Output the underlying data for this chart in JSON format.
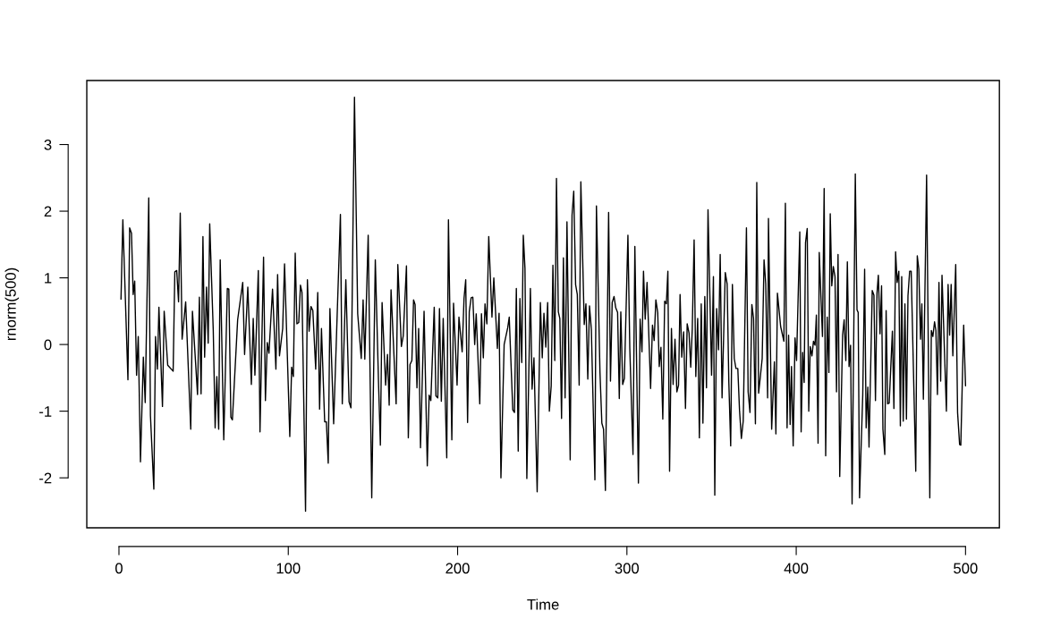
{
  "chart_data": {
    "type": "line",
    "xlabel": "Time",
    "ylabel": "rnorm(500)",
    "color": "#000000",
    "xlim": [
      -19,
      520
    ],
    "ylim": [
      -2.75,
      3.96
    ],
    "xticks": [
      0,
      100,
      200,
      300,
      400,
      500
    ],
    "yticks": [
      -2,
      -1,
      0,
      1,
      2,
      3
    ],
    "x": [
      1.2,
      2.3,
      5.3,
      6.3,
      7.4,
      8.4,
      9.3,
      10.4,
      11.4,
      12.7,
      14.4,
      15.5,
      17.6,
      18.6,
      20.6,
      21.6,
      22.7,
      23.6,
      25.7,
      26.7,
      28.8,
      32,
      33,
      34.1,
      35.2,
      36.2,
      37.3,
      39.4,
      42.4,
      43.4,
      46.4,
      47.5,
      48.5,
      49.6,
      50.6,
      51.7,
      52.7,
      53.6,
      55.7,
      56.8,
      57.8,
      58.9,
      59.8,
      61.9,
      64,
      64.9,
      66.1,
      67,
      70.1,
      73.1,
      74.2,
      76.1,
      78.2,
      79.3,
      80.3,
      82.3,
      83.3,
      85.4,
      86.5,
      87.6,
      88.6,
      90.7,
      92.7,
      93.7,
      94.8,
      96.7,
      97.8,
      100.9,
      102,
      103,
      104.1,
      105.1,
      106.2,
      107.2,
      108.1,
      110.2,
      111.3,
      112.3,
      113.4,
      114.5,
      116.2,
      117.4,
      118.5,
      119.6,
      121.5,
      122.5,
      123.6,
      124.6,
      126.8,
      130.8,
      131.9,
      134,
      135.9,
      137,
      139.1,
      141,
      143.1,
      144.2,
      145.2,
      147.2,
      149.3,
      151.4,
      153.3,
      154.4,
      155.4,
      157.5,
      158.6,
      159.6,
      160.7,
      163.7,
      164.7,
      166.8,
      167.9,
      169.8,
      170.9,
      171.9,
      173,
      174,
      174.9,
      176,
      177,
      178.1,
      180.2,
      182.1,
      183.2,
      184.2,
      186.2,
      187.2,
      188.3,
      189.3,
      190.4,
      191.5,
      193.6,
      194.6,
      196.6,
      197.6,
      199.7,
      200.8,
      202.7,
      203.8,
      204.8,
      205.9,
      206.9,
      208,
      209,
      210.1,
      211,
      213.1,
      214.1,
      215.2,
      216.2,
      217.3,
      218.4,
      220.3,
      221.4,
      223.5,
      224.5,
      225.6,
      227.5,
      229.6,
      230.5,
      232.6,
      233.6,
      234.7,
      235.8,
      236.8,
      237.9,
      238.8,
      239.8,
      240.9,
      243,
      244,
      245.1,
      247,
      248.9,
      250,
      251,
      252.1,
      253.2,
      254.2,
      255.3,
      256.3,
      257.4,
      258.4,
      259.5,
      260.4,
      261.4,
      262.5,
      263.5,
      264.6,
      266.5,
      267.6,
      268.6,
      269.7,
      270.7,
      271.8,
      272.8,
      274.8,
      275.8,
      276.9,
      277.9,
      279,
      281.1,
      282,
      284.1,
      285.2,
      286.2,
      287.3,
      289.2,
      290.3,
      291.3,
      292.4,
      293.4,
      294.5,
      295.5,
      296.4,
      297.5,
      298.5,
      300.6,
      301.7,
      303.6,
      304.7,
      306.8,
      307.8,
      308.9,
      309.8,
      310.8,
      311.9,
      314,
      315.1,
      316.1,
      317.1,
      318.2,
      319.1,
      320.1,
      321.2,
      322.3,
      323.3,
      324.2,
      325.2,
      326.3,
      327.3,
      328.4,
      329.5,
      330.5,
      331.4,
      332.4,
      333.5,
      334.6,
      335.6,
      336.7,
      337.7,
      338.6,
      339.7,
      340.7,
      341.8,
      342.8,
      343.9,
      344.9,
      346,
      347,
      347.9,
      349,
      350,
      351.1,
      351.9,
      353,
      354.1,
      355.1,
      356.2,
      358.1,
      359.2,
      360.2,
      361.3,
      362.3,
      363.4,
      364.4,
      365.5,
      366.5,
      367.6,
      368.7,
      370.6,
      371.6,
      372.7,
      373.8,
      374.8,
      375.9,
      376.7,
      377.8,
      378.9,
      379.9,
      381,
      382,
      383.1,
      383.6,
      385.5,
      387.1,
      388,
      388.9,
      390.8,
      392.7,
      393.6,
      394.6,
      395.5,
      396.4,
      397.2,
      398.2,
      399.3,
      400.2,
      402.1,
      402.9,
      403.8,
      404.7,
      405.5,
      406.5,
      407.4,
      408.3,
      409.3,
      410.2,
      411.1,
      411.9,
      412.9,
      413.6,
      415.5,
      416.5,
      417.4,
      418.3,
      419.3,
      420.1,
      421,
      421.9,
      422.9,
      423.8,
      424.7,
      425.7,
      427.4,
      428.3,
      429.3,
      430.2,
      431.2,
      432.1,
      433,
      434.9,
      435.9,
      436.6,
      437.4,
      439.3,
      440.4,
      441.3,
      442.3,
      443,
      444.9,
      445.9,
      446.8,
      447.7,
      448.5,
      449.5,
      450.4,
      451.2,
      452.3,
      453.1,
      454,
      454.9,
      456.8,
      457.7,
      458.7,
      459.6,
      460.6,
      461.5,
      462.3,
      463.2,
      464.2,
      465.1,
      466,
      467,
      467.9,
      470.6,
      471.5,
      472.4,
      473.4,
      474.2,
      475.1,
      477,
      478.9,
      479.8,
      480.7,
      481.7,
      482.5,
      483.4,
      484.3,
      485.3,
      486.1,
      488.7,
      489.7,
      490.6,
      491.5,
      492.5,
      494.2,
      495.3,
      496.5,
      497.2,
      498.9,
      500
    ],
    "values": [
      0.68,
      1.87,
      -0.53,
      1.75,
      1.67,
      0.75,
      0.95,
      -0.46,
      0.12,
      -1.76,
      -0.19,
      -0.87,
      2.2,
      -1.07,
      -2.17,
      0.12,
      -0.37,
      0.56,
      -0.93,
      0.5,
      -0.31,
      -0.4,
      1.09,
      1.11,
      0.64,
      1.97,
      0.08,
      0.64,
      -1.27,
      0.5,
      -0.75,
      0.71,
      -0.74,
      1.62,
      -0.19,
      0.86,
      0.02,
      1.81,
      0.21,
      -1.25,
      -0.48,
      -1.27,
      1.27,
      -1.43,
      0.84,
      0.83,
      -1.09,
      -1.13,
      0.37,
      0.93,
      -0.15,
      0.86,
      -0.6,
      0.39,
      -0.46,
      1.11,
      -1.31,
      1.31,
      -0.84,
      0.03,
      -0.13,
      0.83,
      -0.37,
      1.05,
      -0.17,
      0.24,
      1.21,
      -1.38,
      -0.34,
      -0.48,
      1.37,
      0.31,
      0.33,
      0.89,
      0.78,
      -2.5,
      0.97,
      0.2,
      0.57,
      0.51,
      -0.37,
      0.78,
      -0.97,
      0.24,
      -1.16,
      -1.16,
      -1.78,
      0.54,
      -1.19,
      1.95,
      -0.89,
      0.97,
      -0.86,
      -0.95,
      3.71,
      0.46,
      -0.21,
      0.67,
      -0.22,
      1.64,
      -2.3,
      1.27,
      -0.57,
      -1.51,
      0.63,
      -0.61,
      -0.15,
      -0.91,
      0.82,
      -0.89,
      1.2,
      -0.03,
      0.13,
      1.18,
      -1.4,
      -0.3,
      -0.24,
      0.67,
      0.6,
      -0.65,
      0.24,
      -1.55,
      0.5,
      -1.82,
      -0.76,
      -0.84,
      0.56,
      -0.77,
      -0.8,
      0.54,
      -0.85,
      0.39,
      -1.7,
      1.87,
      -1.43,
      0.62,
      -0.61,
      0.41,
      -0.11,
      0.69,
      0.97,
      -1.17,
      0.49,
      0.7,
      0.71,
      0.0,
      0.46,
      -0.89,
      0.46,
      -0.2,
      0.61,
      0.31,
      1.62,
      0.41,
      1.0,
      -0.06,
      0.47,
      -2.0,
      0.0,
      0.25,
      0.41,
      -0.98,
      -1.02,
      0.84,
      -1.6,
      0.69,
      -0.27,
      1.64,
      1.14,
      -2.01,
      0.84,
      -0.67,
      -0.2,
      -2.21,
      0.63,
      -0.2,
      0.47,
      -0.04,
      0.63,
      -1.0,
      -0.62,
      1.19,
      -0.24,
      2.49,
      0.49,
      0.39,
      -1.11,
      1.3,
      -0.8,
      1.84,
      -1.73,
      1.94,
      2.3,
      0.9,
      0.75,
      -0.61,
      2.44,
      0.3,
      0.61,
      -0.52,
      0.58,
      0.23,
      -2.03,
      2.08,
      -0.42,
      -1.18,
      -1.27,
      -2.19,
      1.98,
      -0.55,
      0.63,
      0.72,
      0.55,
      0.48,
      -0.81,
      0.49,
      -0.6,
      -0.51,
      1.64,
      -0.05,
      -1.65,
      1.47,
      -2.08,
      0.38,
      -0.11,
      1.1,
      0.38,
      0.93,
      -0.66,
      0.29,
      0.06,
      0.67,
      0.48,
      -0.33,
      -0.04,
      -1.12,
      0.65,
      0.61,
      1.1,
      -1.9,
      0.24,
      -0.6,
      0.08,
      -0.71,
      -0.61,
      0.75,
      -0.19,
      0.19,
      -0.96,
      0.31,
      0.17,
      -0.34,
      0.23,
      1.57,
      -0.48,
      0.39,
      -1.4,
      0.61,
      -1.18,
      0.72,
      -0.65,
      2.02,
      0.75,
      -0.46,
      1.02,
      -2.26,
      0.54,
      -0.08,
      1.35,
      -0.8,
      1.08,
      0.91,
      -0.57,
      -1.52,
      0.9,
      -0.21,
      -0.36,
      -0.36,
      -0.98,
      -1.41,
      -1.15,
      1.75,
      -0.71,
      -1.02,
      0.6,
      0.39,
      -1.19,
      2.43,
      -0.73,
      -0.46,
      -0.21,
      1.27,
      0.91,
      -0.8,
      1.89,
      -1.27,
      -0.26,
      -1.34,
      0.77,
      0.27,
      0.05,
      2.12,
      -1.25,
      0.14,
      -1.2,
      -0.33,
      -1.52,
      0.1,
      -0.24,
      1.69,
      -1.31,
      -0.12,
      -0.57,
      1.53,
      1.74,
      -1.0,
      -0.03,
      -0.17,
      0.05,
      -0.01,
      0.44,
      -1.48,
      1.38,
      0.12,
      2.34,
      -1.67,
      0.41,
      -0.42,
      1.96,
      0.88,
      1.17,
      1.02,
      -0.71,
      1.35,
      -1.98,
      0.14,
      0.37,
      -0.24,
      1.24,
      -0.33,
      -0.01,
      -2.39,
      2.56,
      0.52,
      0.48,
      -2.3,
      -0.75,
      1.13,
      -1.25,
      -0.64,
      -1.54,
      0.81,
      0.74,
      -0.84,
      0.77,
      1.04,
      0.16,
      0.88,
      -1.27,
      -1.65,
      0.51,
      -0.89,
      -0.88,
      0.2,
      -0.96,
      1.39,
      0.93,
      1.1,
      -1.22,
      1.02,
      -1.15,
      0.61,
      -1.12,
      0.73,
      1.1,
      1.1,
      -1.9,
      1.33,
      1.13,
      0.08,
      0.61,
      -0.82,
      2.54,
      -2.3,
      0.21,
      0.12,
      0.34,
      0.21,
      -0.75,
      0.93,
      -0.55,
      1.04,
      -1.0,
      0.9,
      0.14,
      0.9,
      -0.17,
      1.2,
      -1.02,
      -1.5,
      -1.51,
      0.29,
      -0.62
    ]
  }
}
